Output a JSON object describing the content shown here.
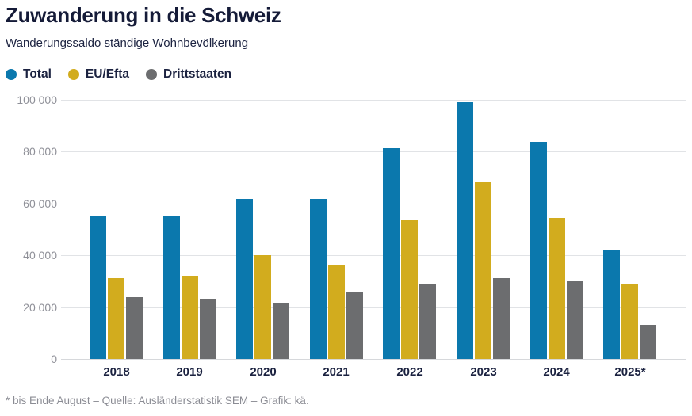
{
  "header": {
    "title": "Zuwanderung in die Schweiz",
    "subtitle": "Wanderungssaldo ständige Wohnbevölkerung"
  },
  "legend": [
    {
      "label": "Total",
      "color": "#0b78ad"
    },
    {
      "label": "EU/Efta",
      "color": "#d2ac1e"
    },
    {
      "label": "Drittstaaten",
      "color": "#6c6d6f"
    }
  ],
  "chart_data": {
    "type": "bar",
    "title": "Zuwanderung in die Schweiz",
    "subtitle": "Wanderungssaldo ständige Wohnbevölkerung",
    "categories": [
      "2018",
      "2019",
      "2020",
      "2021",
      "2022",
      "2023",
      "2024",
      "2025*"
    ],
    "series": [
      {
        "name": "Total",
        "color": "#0b78ad",
        "values": [
          55000,
          55400,
          61800,
          61600,
          81300,
          98900,
          83800,
          41900
        ]
      },
      {
        "name": "EU/Efta",
        "color": "#d2ac1e",
        "values": [
          31000,
          32100,
          40100,
          35900,
          53400,
          68200,
          54200,
          28700
        ]
      },
      {
        "name": "Drittstaaten",
        "color": "#6c6d6f",
        "values": [
          23900,
          23100,
          21400,
          25800,
          28700,
          31200,
          30000,
          13200
        ]
      }
    ],
    "ylim": [
      0,
      100000
    ],
    "y_ticks": [
      {
        "value": 0,
        "label": "0"
      },
      {
        "value": 20000,
        "label": "20 000"
      },
      {
        "value": 40000,
        "label": "40 000"
      },
      {
        "value": 60000,
        "label": "60 000"
      },
      {
        "value": 80000,
        "label": "80 000"
      },
      {
        "value": 100000,
        "label": "100 000"
      }
    ],
    "grid": true,
    "legend_position": "top"
  },
  "footer": {
    "note": "* bis Ende August – Quelle: Ausländerstatistik SEM – Grafik: kä."
  }
}
